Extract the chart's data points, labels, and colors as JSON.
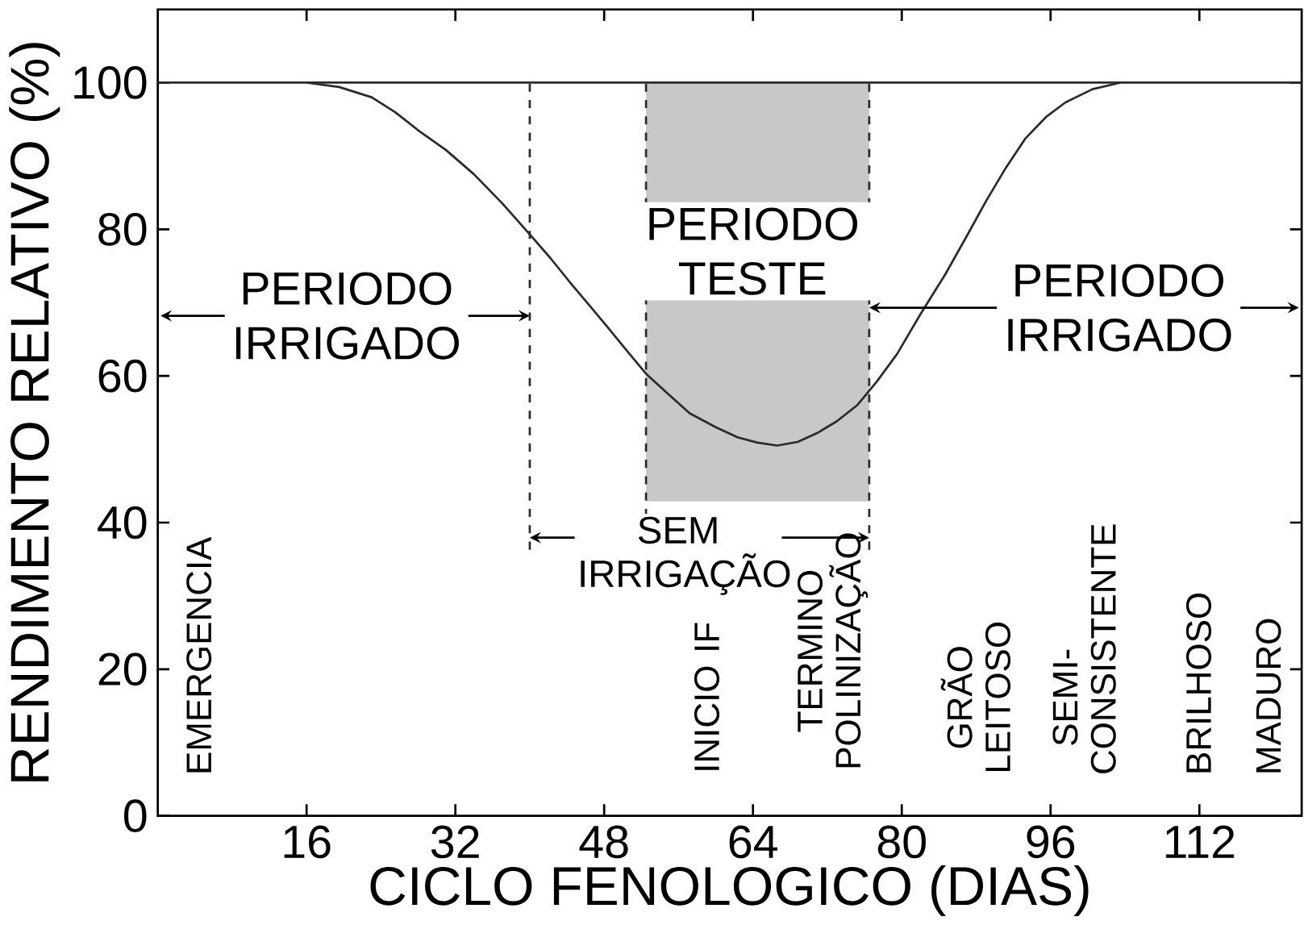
{
  "chart_data": {
    "type": "line",
    "xlabel": "CICLO FENOLOGICO (DIAS)",
    "ylabel": "RENDIMENTO RELATIVO (%)",
    "x": [
      16,
      19.5,
      23,
      25.5,
      28,
      31,
      34,
      37,
      40,
      42.2,
      44.3,
      46.5,
      48.6,
      50.6,
      52.5,
      55,
      57.2,
      60,
      62.4,
      64.5,
      66.6,
      68.8,
      70.9,
      73,
      75.2,
      77.3,
      79.5,
      82,
      84.7,
      87,
      89,
      91.2,
      93.3,
      95.5,
      97.6,
      100.5,
      103.5
    ],
    "series": [
      {
        "color": "#2b2b2b",
        "values": [
          100,
          99.4,
          98,
          96,
          93.5,
          90.8,
          87.5,
          83.6,
          79.3,
          76.1,
          72.8,
          69.5,
          66.3,
          63.2,
          60.3,
          57.4,
          54.9,
          53,
          51.6,
          50.9,
          50.5,
          51,
          52.2,
          53.8,
          56,
          59.2,
          63,
          68.4,
          73.9,
          79.1,
          83.7,
          88.4,
          92.4,
          95.3,
          97.3,
          99.1,
          100
        ]
      }
    ],
    "xlim": [
      0,
      123
    ],
    "ylim": [
      0,
      110
    ],
    "xticks": [
      16,
      32,
      48,
      64,
      80,
      96,
      112
    ],
    "yticks": [
      0,
      20,
      40,
      60,
      80,
      100
    ],
    "ref_lines": [
      {
        "axis": "y",
        "value": 100,
        "color": "#2b2b2b",
        "line_style": "solid"
      },
      {
        "axis": "x",
        "value": 40,
        "color": "#2b2b2b",
        "line_style": "dashed"
      },
      {
        "axis": "x",
        "value": 52.5,
        "color": "#2b2b2b",
        "line_style": "dashed"
      },
      {
        "axis": "x",
        "value": 76.5,
        "color": "#2b2b2b",
        "line_style": "dashed"
      }
    ],
    "bands": [
      {
        "axis": "x",
        "from": 52.5,
        "to": 76.5,
        "color": "#c8c8c8"
      }
    ],
    "annotations": [
      "PERIODO IRRIGADO",
      "PERIODO TESTE",
      "PERIODO IRRIGADO",
      "SEM IRRIGAÇÃO",
      "EMERGENCIA",
      "INICIO IF",
      "TERMINO POLINIZAÇÃO",
      "GRÃO LEITOSO",
      "SEMI-CONSISTENTE",
      "BRILHOSO",
      "MADURO"
    ],
    "grid": false,
    "marker": "none",
    "line_style": "solid"
  }
}
